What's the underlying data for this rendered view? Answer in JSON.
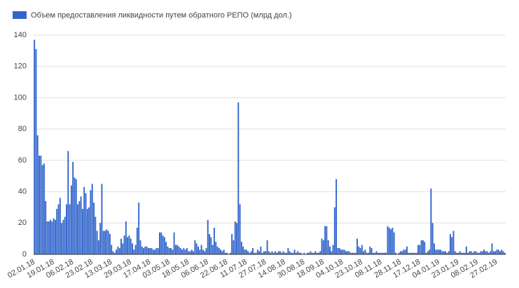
{
  "chart_data": {
    "type": "bar",
    "series": [
      {
        "name": "Объем предоставления ликвидности путем обратного РЕПО (млрд дол.)",
        "color": "#3366cc",
        "values": [
          137,
          131,
          76,
          63,
          63,
          57,
          58,
          34,
          21,
          21,
          22,
          21,
          23,
          22,
          29,
          32,
          36,
          20,
          22,
          24,
          32,
          66,
          32,
          44,
          59,
          49,
          48,
          32,
          34,
          37,
          29,
          43,
          39,
          29,
          30,
          41,
          45,
          33,
          24,
          15,
          9,
          20,
          45,
          15,
          15,
          16,
          15,
          13,
          6,
          2,
          1,
          3,
          5,
          4,
          10,
          7,
          12,
          21,
          11,
          12,
          10,
          7,
          3,
          6,
          17,
          33,
          9,
          5,
          4,
          5,
          5,
          4,
          4,
          4,
          3,
          3,
          4,
          4,
          14,
          14,
          12,
          11,
          8,
          5,
          4,
          4,
          3,
          14,
          6,
          6,
          5,
          4,
          3,
          4,
          3,
          4,
          2,
          2,
          3,
          2,
          9,
          7,
          5,
          3,
          6,
          3,
          2,
          4,
          22,
          13,
          11,
          6,
          17,
          8,
          5,
          4,
          3,
          2,
          3,
          1,
          1,
          0,
          1,
          13,
          9,
          21,
          20,
          97,
          32,
          8,
          5,
          3,
          3,
          2,
          1,
          2,
          4,
          1,
          1,
          3,
          2,
          5,
          1,
          2,
          2,
          9,
          2,
          1,
          2,
          1,
          2,
          1,
          2,
          2,
          1,
          2,
          1,
          1,
          4,
          2,
          1,
          1,
          3,
          1,
          2,
          1,
          1,
          0,
          1,
          0,
          1,
          1,
          2,
          1,
          1,
          2,
          1,
          1,
          2,
          10,
          9,
          18,
          18,
          9,
          5,
          2,
          6,
          30,
          48,
          4,
          4,
          3,
          3,
          3,
          2,
          2,
          2,
          1,
          1,
          1,
          1,
          10,
          5,
          4,
          6,
          2,
          3,
          1,
          1,
          5,
          4,
          1,
          1,
          2,
          1,
          1,
          1,
          1,
          1,
          1,
          18,
          17,
          16,
          17,
          14,
          1,
          0,
          1,
          2,
          2,
          3,
          3,
          5,
          1,
          1,
          1,
          1,
          1,
          1,
          6,
          6,
          9,
          9,
          8,
          1,
          2,
          3,
          42,
          20,
          7,
          3,
          3,
          3,
          3,
          2,
          2,
          2,
          1,
          2,
          13,
          11,
          15,
          2,
          1,
          1,
          2,
          1,
          1,
          1,
          5,
          1,
          2,
          2,
          1,
          2,
          2,
          1,
          1,
          2,
          2,
          3,
          2,
          2,
          1,
          2,
          7,
          2,
          2,
          3,
          3,
          2,
          3,
          2,
          1
        ]
      }
    ],
    "categories": [
      "02.01.18",
      null,
      null,
      null,
      null,
      null,
      null,
      null,
      null,
      null,
      null,
      null,
      "19.01.18",
      null,
      null,
      null,
      null,
      null,
      null,
      null,
      null,
      null,
      null,
      null,
      "06.02.18",
      null,
      null,
      null,
      null,
      null,
      null,
      null,
      null,
      null,
      null,
      null,
      "23.02.18",
      null,
      null,
      null,
      null,
      null,
      null,
      null,
      null,
      null,
      null,
      null,
      "13.03.18",
      null,
      null,
      null,
      null,
      null,
      null,
      null,
      null,
      null,
      null,
      null,
      "29.03.18",
      null,
      null,
      null,
      null,
      null,
      null,
      null,
      null,
      null,
      null,
      null,
      "17.04.18",
      null,
      null,
      null,
      null,
      null,
      null,
      null,
      null,
      null,
      null,
      null,
      "03.05.18",
      null,
      null,
      null,
      null,
      null,
      null,
      null,
      null,
      null,
      null,
      null,
      "18.05.18",
      null,
      null,
      null,
      null,
      null,
      null,
      null,
      null,
      null,
      null,
      null,
      "06.06.18",
      null,
      null,
      null,
      null,
      null,
      null,
      null,
      null,
      null,
      null,
      null,
      "22.06.18",
      null,
      null,
      null,
      null,
      null,
      null,
      null,
      null,
      null,
      null,
      null,
      "11.07.18",
      null,
      null,
      null,
      null,
      null,
      null,
      null,
      null,
      null,
      null,
      null,
      "27.07.18",
      null,
      null,
      null,
      null,
      null,
      null,
      null,
      null,
      null,
      null,
      null,
      "14.08.18",
      null,
      null,
      null,
      null,
      null,
      null,
      null,
      null,
      null,
      null,
      null,
      "30.08.18",
      null,
      null,
      null,
      null,
      null,
      null,
      null,
      null,
      null,
      null,
      null,
      "18.09.18",
      null,
      null,
      null,
      null,
      null,
      null,
      null,
      null,
      null,
      null,
      null,
      "04.10.18",
      null,
      null,
      null,
      null,
      null,
      null,
      null,
      null,
      null,
      null,
      null,
      "23.10.18",
      null,
      null,
      null,
      null,
      null,
      null,
      null,
      null,
      null,
      null,
      null,
      "08.11.18",
      null,
      null,
      null,
      null,
      null,
      null,
      null,
      null,
      null,
      null,
      null,
      "28.11.18",
      null,
      null,
      null,
      null,
      null,
      null,
      null,
      null,
      null,
      null,
      null,
      "17.12.18",
      null,
      null,
      null,
      null,
      null,
      null,
      null,
      null,
      null,
      null,
      null,
      "04.01.19",
      null,
      null,
      null,
      null,
      null,
      null,
      null,
      null,
      null,
      null,
      null,
      "23.01.19",
      null,
      null,
      null,
      null,
      null,
      null,
      null,
      null,
      null,
      null,
      null,
      "08.02.19",
      null,
      null,
      null,
      null,
      null,
      null,
      null,
      null,
      null,
      null,
      null,
      "27.02.19",
      null,
      null,
      null,
      null,
      null
    ],
    "ylim": [
      0,
      140
    ],
    "yticks": [
      0,
      20,
      40,
      60,
      80,
      100,
      120,
      140
    ],
    "grid": true,
    "legend": "top-left"
  }
}
